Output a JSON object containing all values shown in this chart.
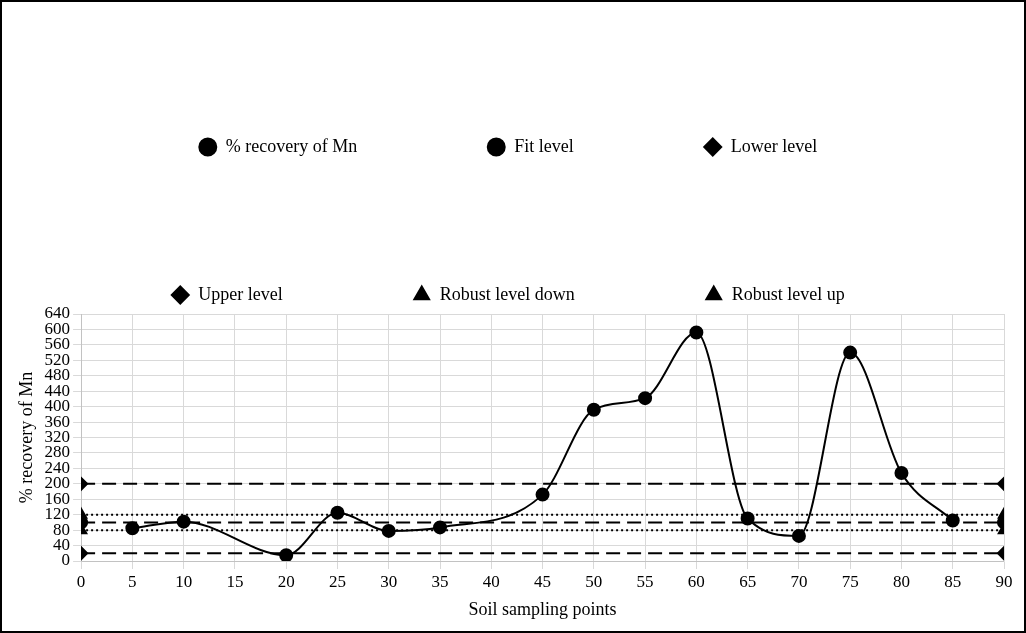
{
  "chart_data": {
    "type": "line",
    "xlabel": "Soil sampling points",
    "ylabel": "% recovery of Mn",
    "xlim": [
      0,
      90
    ],
    "xticks": [
      0,
      5,
      10,
      15,
      20,
      25,
      30,
      35,
      40,
      45,
      50,
      55,
      60,
      65,
      70,
      75,
      80,
      85,
      90
    ],
    "ylim": [
      0,
      640
    ],
    "yticks": [
      0,
      40,
      80,
      120,
      160,
      200,
      240,
      280,
      320,
      360,
      400,
      440,
      480,
      520,
      560,
      600,
      640
    ],
    "grid": true,
    "legend": "top",
    "series": [
      {
        "name": "% recovery of Mn",
        "color": "#000000",
        "marker": "circle",
        "line_style": "solid",
        "x": [
          5,
          10,
          20,
          25,
          30,
          35,
          45,
          50,
          55,
          60,
          65,
          70,
          75,
          80,
          85
        ],
        "values": [
          85,
          102,
          15,
          125,
          78,
          87,
          172,
          392,
          422,
          592,
          110,
          65,
          540,
          228,
          105
        ]
      },
      {
        "name": "Fit level",
        "color": "#000000",
        "marker": "circle",
        "line_style": "dashed",
        "x": [
          0,
          90
        ],
        "values": [
          100,
          100
        ]
      },
      {
        "name": "Lower level",
        "color": "#000000",
        "marker": "diamond",
        "line_style": "dashed",
        "x": [
          0,
          90
        ],
        "values": [
          20,
          20
        ]
      },
      {
        "name": "Upper level",
        "color": "#000000",
        "marker": "diamond",
        "line_style": "dashed",
        "x": [
          0,
          90
        ],
        "values": [
          200,
          200
        ]
      },
      {
        "name": "Robust level down",
        "color": "#000000",
        "marker": "triangle",
        "line_style": "dotted",
        "x": [
          0,
          90
        ],
        "values": [
          80,
          80
        ]
      },
      {
        "name": "Robust level up",
        "color": "#000000",
        "marker": "triangle",
        "line_style": "dotted",
        "x": [
          0,
          90
        ],
        "values": [
          120,
          120
        ]
      }
    ]
  }
}
